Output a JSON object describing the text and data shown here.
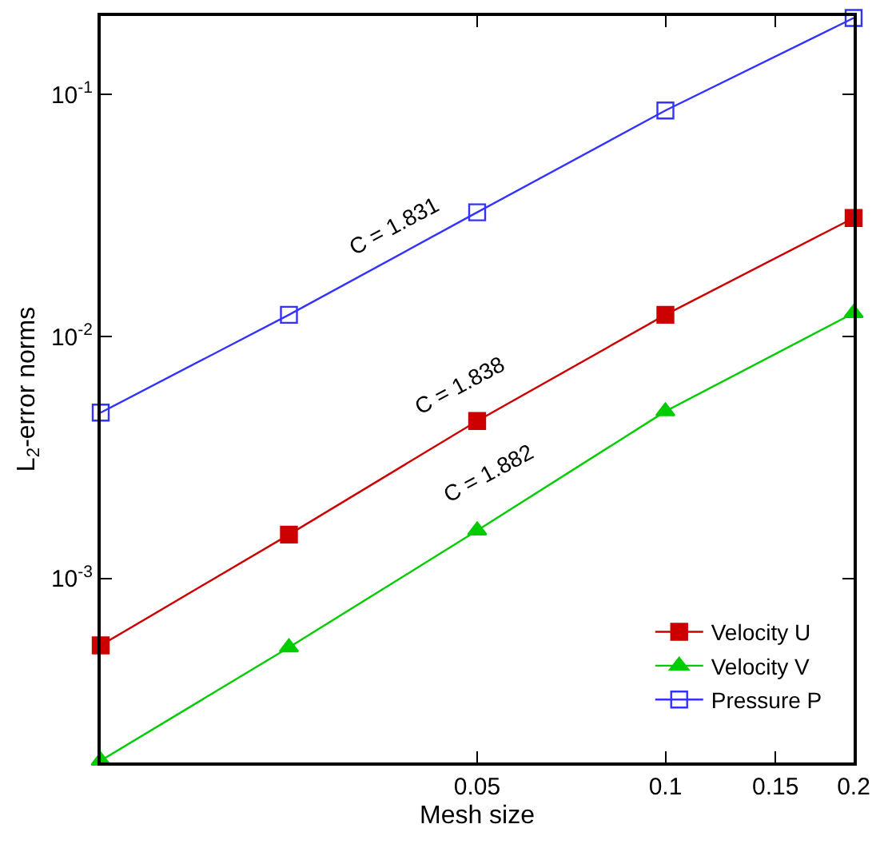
{
  "chart_data": {
    "type": "line",
    "xlabel": "Mesh size",
    "ylabel": "L$_{2}$-error norms",
    "x": [
      0.0125,
      0.025,
      0.05,
      0.1,
      0.2
    ],
    "series": [
      {
        "name": "Velocity U",
        "color": "#cc0000",
        "marker": "square",
        "values": [
          0.00053,
          0.00152,
          0.00448,
          0.0123,
          0.0309
        ]
      },
      {
        "name": "Velocity V",
        "color": "#00cc00",
        "marker": "triangle",
        "values": [
          0.000177,
          0.00052,
          0.00158,
          0.00491,
          0.0125
        ]
      },
      {
        "name": "Pressure P",
        "color": "#3333ff",
        "marker": "square-open",
        "values": [
          0.00485,
          0.0123,
          0.0326,
          0.0859,
          0.207
        ]
      }
    ],
    "log": "xy",
    "xlim": [
      0.0125,
      0.2
    ],
    "ylim": [
      0.000174,
      0.211
    ],
    "xticks": [
      0.05,
      0.1,
      0.15,
      0.2
    ],
    "yticks": [
      {
        "value": 0.001,
        "label": "10$^{-3}$"
      },
      {
        "value": 0.01,
        "label": "10$^{-2}$"
      },
      {
        "value": 0.1,
        "label": "10$^{-1}$"
      }
    ],
    "grid": false,
    "legend": "bottom right",
    "line_style": "solid",
    "annotations": [
      "C = 1.831",
      "C = 1.838",
      "C = 1.882"
    ]
  }
}
